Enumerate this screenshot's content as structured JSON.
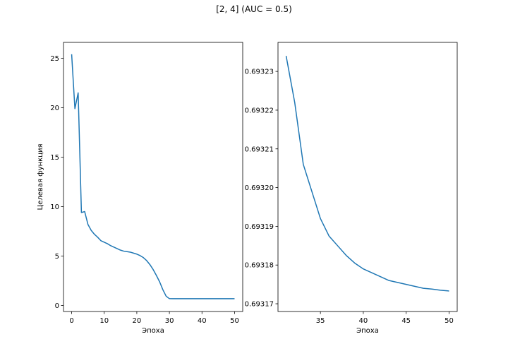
{
  "figure": {
    "title": "[2, 4] (AUC = 0.5)"
  },
  "chart_data": [
    {
      "type": "line",
      "xlabel": "Эпоха",
      "ylabel": "Целевая функция",
      "xlim": [
        -2.5,
        52.5
      ],
      "ylim": [
        -0.6,
        26.6
      ],
      "xticks": [
        0,
        10,
        20,
        30,
        40,
        50
      ],
      "yticks": [
        0,
        5,
        10,
        15,
        20,
        25
      ],
      "xtick_labels": [
        "0",
        "10",
        "20",
        "30",
        "40",
        "50"
      ],
      "ytick_labels": [
        "0",
        "5",
        "10",
        "15",
        "20",
        "25"
      ],
      "grid": false,
      "series": [
        {
          "color": "#1f77b4",
          "x": [
            0,
            1,
            2,
            3,
            4,
            5,
            6,
            7,
            8,
            9,
            10,
            11,
            12,
            13,
            14,
            15,
            16,
            17,
            18,
            19,
            20,
            21,
            22,
            23,
            24,
            25,
            26,
            27,
            28,
            29,
            30,
            31,
            32,
            33,
            34,
            35,
            36,
            37,
            38,
            39,
            40,
            41,
            42,
            43,
            44,
            45,
            46,
            47,
            48,
            49,
            50
          ],
          "y": [
            25.4,
            19.9,
            21.5,
            9.4,
            9.5,
            8.2,
            7.6,
            7.2,
            6.9,
            6.55,
            6.4,
            6.25,
            6.05,
            5.9,
            5.75,
            5.6,
            5.5,
            5.45,
            5.4,
            5.3,
            5.2,
            5.05,
            4.85,
            4.55,
            4.15,
            3.65,
            3.05,
            2.4,
            1.6,
            0.95,
            0.7,
            0.694,
            0.694,
            0.694,
            0.694,
            0.694,
            0.694,
            0.694,
            0.694,
            0.694,
            0.694,
            0.694,
            0.694,
            0.694,
            0.694,
            0.694,
            0.694,
            0.694,
            0.694,
            0.694,
            0.694
          ]
        }
      ]
    },
    {
      "type": "line",
      "xlabel": "Эпоха",
      "ylabel": "",
      "xlim": [
        30.05,
        50.95
      ],
      "ylim": [
        0.693168,
        0.6932375
      ],
      "xticks": [
        35,
        40,
        45,
        50
      ],
      "yticks": [
        0.69317,
        0.69318,
        0.69319,
        0.6932,
        0.69321,
        0.69322,
        0.69323
      ],
      "xtick_labels": [
        "35",
        "40",
        "45",
        "50"
      ],
      "ytick_labels": [
        "0.69317",
        "0.69318",
        "0.69319",
        "0.69320",
        "0.69321",
        "0.69322",
        "0.69323"
      ],
      "grid": false,
      "series": [
        {
          "color": "#1f77b4",
          "x": [
            31,
            32,
            33,
            34,
            35,
            36,
            37,
            38,
            39,
            40,
            41,
            42,
            43,
            44,
            45,
            46,
            47,
            48,
            49,
            50
          ],
          "y": [
            0.693234,
            0.693222,
            0.693206,
            0.693199,
            0.693192,
            0.6931875,
            0.693185,
            0.6931825,
            0.6931805,
            0.693179,
            0.693178,
            0.693177,
            0.693176,
            0.6931755,
            0.693175,
            0.6931745,
            0.693174,
            0.6931738,
            0.6931735,
            0.6931733
          ]
        }
      ]
    }
  ]
}
